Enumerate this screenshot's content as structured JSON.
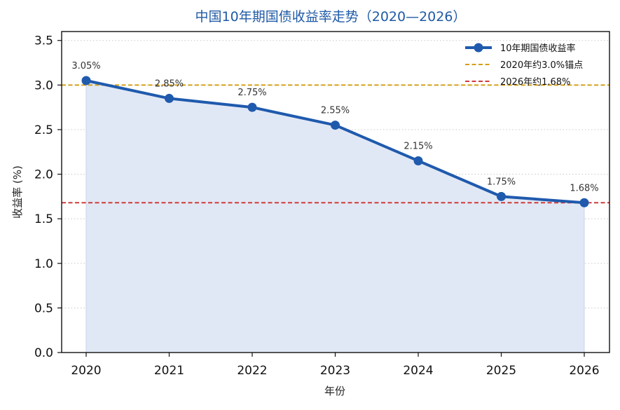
{
  "chart_data": {
    "type": "line",
    "title": "中国10年期国债收益率走势（2020—2026）",
    "xlabel": "年份",
    "ylabel": "收益率 (%)",
    "categories": [
      "2020",
      "2021",
      "2022",
      "2023",
      "2024",
      "2025",
      "2026"
    ],
    "series": [
      {
        "name": "10年期国债收益率",
        "values": [
          3.05,
          2.85,
          2.75,
          2.55,
          2.15,
          1.75,
          1.68
        ],
        "labels": [
          "3.05%",
          "2.85%",
          "2.75%",
          "2.55%",
          "2.15%",
          "1.75%",
          "1.68%"
        ],
        "color": "#1f5aad"
      }
    ],
    "reference_lines": [
      {
        "name": "2020年约3.0%锚点",
        "value": 3.0,
        "color": "#d4a017"
      },
      {
        "name": "2026年约1.68%",
        "value": 1.68,
        "color": "#d03b3b"
      }
    ],
    "ylim": [
      0,
      3.6
    ],
    "yticks": [
      "0.0",
      "0.5",
      "1.0",
      "1.5",
      "2.0",
      "2.5",
      "3.0",
      "3.5"
    ],
    "grid": "y-dotted",
    "area_fill": true,
    "legend": "top-right"
  }
}
